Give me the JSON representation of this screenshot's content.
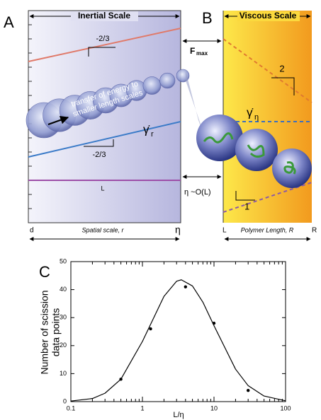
{
  "panel_a": {
    "label": "A",
    "header": "Inertial Scale",
    "slope_top": "-2/3",
    "slope_bottom": "-2/3",
    "bubble_text": [
      "transfer of energy to",
      "smaller length scales"
    ],
    "rate_symbol": "γ̇",
    "rate_subscript": "r",
    "line_label": "L",
    "axis": {
      "start": "d",
      "label": "Spatial scale, r",
      "end": "η"
    }
  },
  "middle": {
    "force": "F",
    "force_subscript": "max",
    "scale_relation": "η ~O(L)"
  },
  "panel_b": {
    "label": "B",
    "header": "Viscous Scale",
    "slope_top": "2",
    "rate_symbol": "γ̇",
    "rate_subscript": "η",
    "slope_bottom": "1",
    "axis": {
      "start": "L",
      "label": "Polymer Length, R",
      "end": "R"
    }
  },
  "chart_data": {
    "type": "scatter",
    "panel_label": "C",
    "xlabel": "L/η",
    "ylabel": [
      "Number of scission",
      "data points"
    ],
    "xscale": "log",
    "xlim": [
      0.1,
      100
    ],
    "ylim": [
      0,
      50
    ],
    "xticks": [
      0.1,
      1,
      10,
      100
    ],
    "yticks": [
      0,
      10,
      20,
      30,
      40,
      50
    ],
    "xminorticks": [
      0.2,
      0.3,
      0.4,
      0.5,
      0.6,
      0.7,
      0.8,
      0.9,
      2,
      3,
      4,
      5,
      6,
      7,
      8,
      9,
      20,
      30,
      40,
      50,
      60,
      70,
      80,
      90
    ],
    "series": [
      {
        "type": "scatter",
        "color": "#000000",
        "x": [
          0.5,
          1.3,
          4,
          10,
          30
        ],
        "values": [
          8,
          26,
          41,
          28,
          4
        ]
      },
      {
        "type": "line",
        "color": "#000000",
        "x": [
          0.1,
          0.2,
          0.3,
          0.5,
          1,
          2,
          3,
          3.5,
          5,
          7,
          10,
          20,
          30,
          50,
          100
        ],
        "values": [
          0.2,
          1.1,
          3.0,
          8.0,
          21.5,
          37.6,
          43.0,
          43.5,
          41.3,
          35.5,
          27.1,
          11.6,
          5.7,
          2.0,
          0.3
        ]
      }
    ]
  }
}
